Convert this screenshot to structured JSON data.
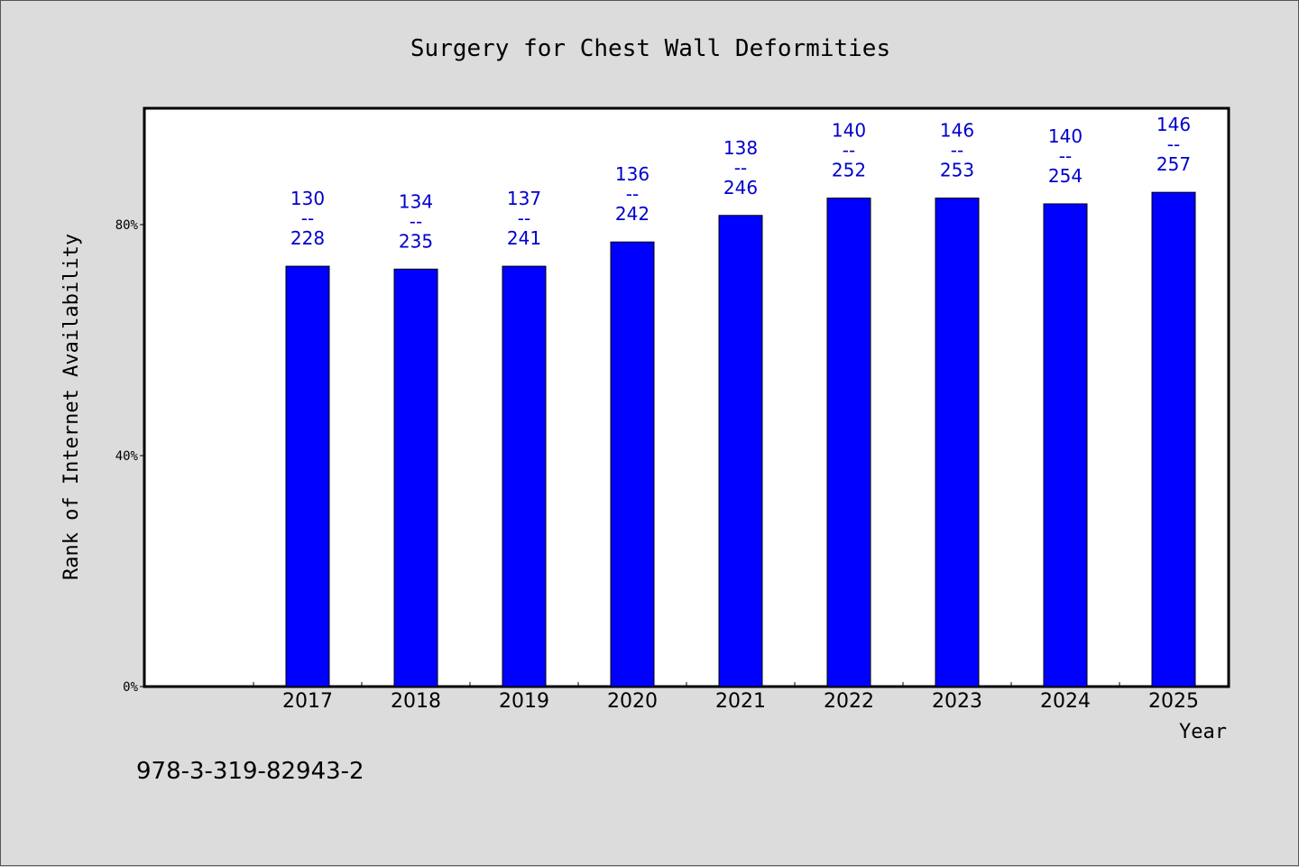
{
  "chart_data": {
    "type": "bar",
    "title": "Surgery for Chest Wall Deformities",
    "xlabel": "Year",
    "ylabel": "Rank of Internet Availability",
    "categories": [
      "2017",
      "2018",
      "2019",
      "2020",
      "2021",
      "2022",
      "2023",
      "2024",
      "2025"
    ],
    "series": [
      {
        "values": [
          0.728,
          0.723,
          0.728,
          0.77,
          0.816,
          0.846,
          0.846,
          0.836,
          0.856
        ],
        "color": "#0000ff"
      }
    ],
    "data_labels": [
      {
        "top": "130",
        "sep": "--",
        "bottom": "228"
      },
      {
        "top": "134",
        "sep": "--",
        "bottom": "235"
      },
      {
        "top": "137",
        "sep": "--",
        "bottom": "241"
      },
      {
        "top": "136",
        "sep": "--",
        "bottom": "242"
      },
      {
        "top": "138",
        "sep": "--",
        "bottom": "246"
      },
      {
        "top": "140",
        "sep": "--",
        "bottom": "252"
      },
      {
        "top": "146",
        "sep": "--",
        "bottom": "253"
      },
      {
        "top": "140",
        "sep": "--",
        "bottom": "254"
      },
      {
        "top": "146",
        "sep": "--",
        "bottom": "257"
      }
    ],
    "ylim": [
      0,
      1
    ],
    "y_ticks": [
      {
        "value": 0,
        "label": "0%"
      },
      {
        "value": 0.4,
        "label": "40%"
      },
      {
        "value": 0.8,
        "label": "80%"
      }
    ],
    "grid": false,
    "label_color": "#0000cc"
  },
  "footer": {
    "code": "978-3-319-82943-2"
  }
}
